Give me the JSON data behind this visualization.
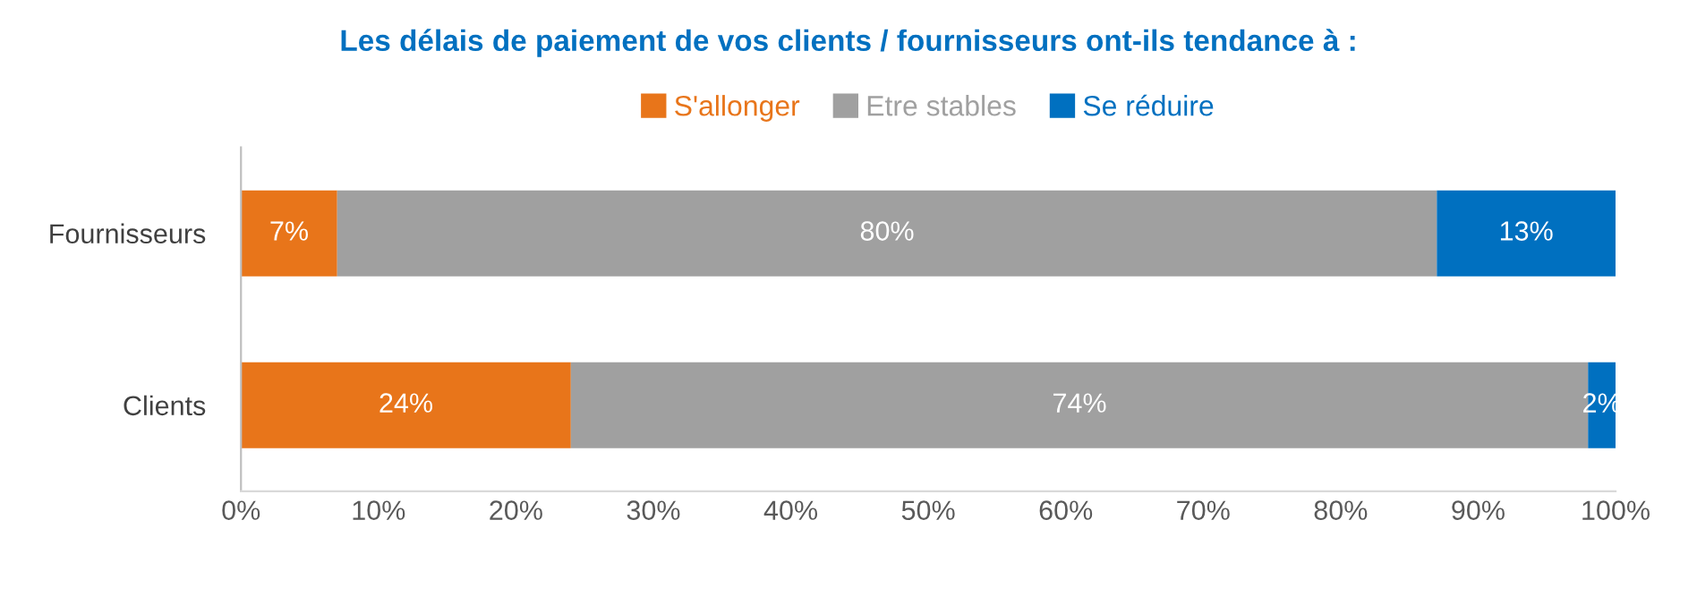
{
  "chart_data": {
    "type": "bar",
    "orientation": "horizontal",
    "stacked": true,
    "title": "Les délais de paiement de vos clients / fournisseurs ont-ils tendance à :",
    "categories": [
      "Fournisseurs",
      "Clients"
    ],
    "series": [
      {
        "name": "S'allonger",
        "color": "#e8751a",
        "values": [
          7,
          24
        ],
        "value_labels": [
          "7%",
          "24%"
        ]
      },
      {
        "name": "Etre stables",
        "color": "#a0a0a0",
        "values": [
          80,
          74
        ],
        "value_labels": [
          "80%",
          "74%"
        ]
      },
      {
        "name": "Se réduire",
        "color": "#0070c0",
        "values": [
          13,
          2
        ],
        "value_labels": [
          "13%",
          "2%"
        ]
      }
    ],
    "xlim": [
      0,
      100
    ],
    "xticks": [
      {
        "value": 0,
        "label": "0%"
      },
      {
        "value": 10,
        "label": "10%"
      },
      {
        "value": 20,
        "label": "20%"
      },
      {
        "value": 30,
        "label": "30%"
      },
      {
        "value": 40,
        "label": "40%"
      },
      {
        "value": 50,
        "label": "50%"
      },
      {
        "value": 60,
        "label": "60%"
      },
      {
        "value": 70,
        "label": "70%"
      },
      {
        "value": 80,
        "label": "80%"
      },
      {
        "value": 90,
        "label": "90%"
      },
      {
        "value": 100,
        "label": "100%"
      }
    ],
    "legend": "top",
    "grid": false
  }
}
